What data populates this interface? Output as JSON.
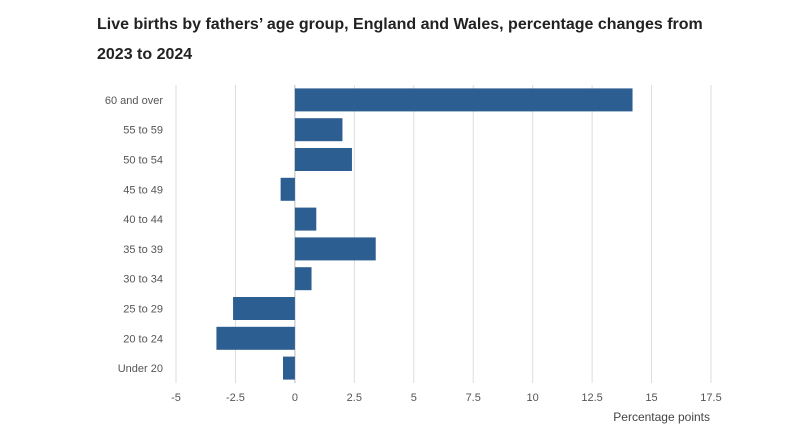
{
  "chart_data": {
    "type": "bar",
    "orientation": "horizontal",
    "title": "Live births by fathers’ age group, England and Wales, percentage changes from 2023 to 2024",
    "xlabel": "Percentage points",
    "ylabel": "",
    "categories": [
      "60 and over",
      "55 to 59",
      "50 to 54",
      "45 to 49",
      "40 to 44",
      "35 to 39",
      "30 to 34",
      "25 to 29",
      "20 to 24",
      "Under 20"
    ],
    "values": [
      14.2,
      2.0,
      2.4,
      -0.6,
      0.9,
      3.4,
      0.7,
      -2.6,
      -3.3,
      -0.5
    ],
    "xlim": [
      -5,
      17.5
    ],
    "x_ticks": [
      -5,
      -2.5,
      0,
      2.5,
      5,
      7.5,
      10,
      12.5,
      15,
      17.5
    ],
    "x_tick_labels": [
      "-5",
      "-2.5",
      "0",
      "2.5",
      "5",
      "7.5",
      "10",
      "12.5",
      "15",
      "17.5"
    ],
    "grid": true,
    "bar_color": "#2d5e91",
    "grid_color": "#dddddd",
    "zero_line_color": "#bbbbbb"
  }
}
